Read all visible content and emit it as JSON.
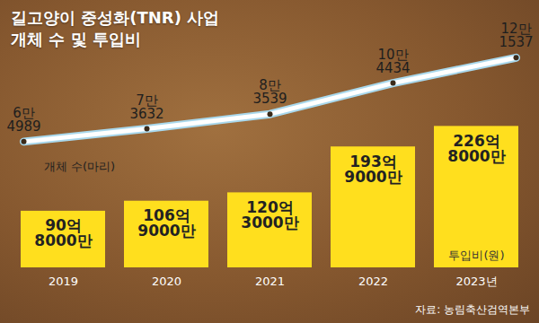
{
  "chart_data": {
    "type": "bar",
    "title": "길고양이 중성화(TNR) 사업\n개체 수 및 투입비",
    "source": "자료: 농림축산검역본부",
    "categories": [
      "2019",
      "2020",
      "2021",
      "2022",
      "2023년"
    ],
    "series": [
      {
        "name": "투입비(원)",
        "type": "bar",
        "color": "#ffdf1e",
        "values": [
          9080000000,
          10690000000,
          12030000000,
          19390000000,
          22680000000
        ],
        "value_labels": [
          "90억\n8000만",
          "106억\n9000만",
          "120억\n3000만",
          "193억\n9000만",
          "226억\n8000만"
        ]
      },
      {
        "name": "개체 수(마리)",
        "type": "line",
        "axis": "y2",
        "color": "#ffffff",
        "marker": "circle",
        "values": [
          64989,
          73632,
          83539,
          104434,
          121537
        ],
        "value_labels": [
          "6만\n4989",
          "7만\n3632",
          "8만\n3539",
          "10만\n4434",
          "12만\n1537"
        ]
      }
    ],
    "ylim": [
      0,
      40000000000
    ],
    "y2lim": [
      -20000,
      148000
    ],
    "data_labels": true,
    "tick_labels": "x",
    "grid": false
  }
}
